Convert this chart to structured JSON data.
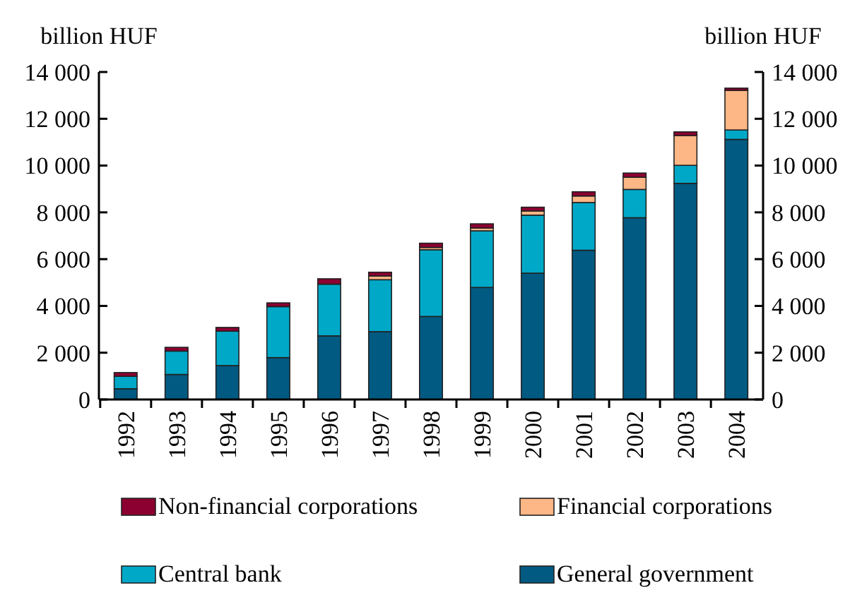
{
  "chart_data": {
    "type": "bar",
    "stacked": true,
    "ylabel": "billion HUF",
    "y2label": "billion HUF",
    "categories": [
      "1992",
      "1993",
      "1994",
      "1995",
      "1996",
      "1997",
      "1998",
      "1999",
      "2000",
      "2001",
      "2002",
      "2003",
      "2004"
    ],
    "series": [
      {
        "name": "General government",
        "color": "#005a82",
        "values": [
          460,
          1070,
          1450,
          1790,
          2720,
          2900,
          3550,
          4790,
          5400,
          6380,
          7770,
          9240,
          11120
        ]
      },
      {
        "name": "Central bank",
        "color": "#00a8c8",
        "values": [
          530,
          1000,
          1470,
          2180,
          2210,
          2220,
          2850,
          2420,
          2480,
          2040,
          1210,
          770,
          400
        ]
      },
      {
        "name": "Financial corporations",
        "color": "#fdb685",
        "values": [
          0,
          0,
          0,
          null,
          null,
          160,
          100,
          120,
          180,
          280,
          520,
          1270,
          1690
        ]
      },
      {
        "name": "Non-financial corporations",
        "color": "#8b0030",
        "values": [
          160,
          160,
          160,
          160,
          230,
          160,
          180,
          180,
          160,
          180,
          180,
          160,
          100
        ]
      }
    ],
    "ylim": [
      0,
      14000
    ],
    "yticks": [
      0,
      {
        "value": 2000,
        "label": "2 000"
      },
      {
        "value": 4000,
        "label": "4 000"
      },
      {
        "value": 6000,
        "label": "6 000"
      },
      {
        "value": 8000,
        "label": "8 000"
      },
      {
        "value": 10000,
        "label": "10 000"
      },
      {
        "value": 12000,
        "label": "12 000"
      },
      {
        "value": 14000,
        "label": "14 000"
      }
    ],
    "y2lim": [
      0,
      14000
    ],
    "y2ticks": [
      0,
      {
        "value": 2000,
        "label": "2 000"
      },
      {
        "value": 4000,
        "label": "4 000"
      },
      {
        "value": 6000,
        "label": "6 000"
      },
      {
        "value": 8000,
        "label": "8 000"
      },
      {
        "value": 10000,
        "label": "10 000"
      },
      {
        "value": 12000,
        "label": "12 000"
      },
      {
        "value": 14000,
        "label": "14 000"
      }
    ],
    "grid": false,
    "legend": "bottom"
  }
}
